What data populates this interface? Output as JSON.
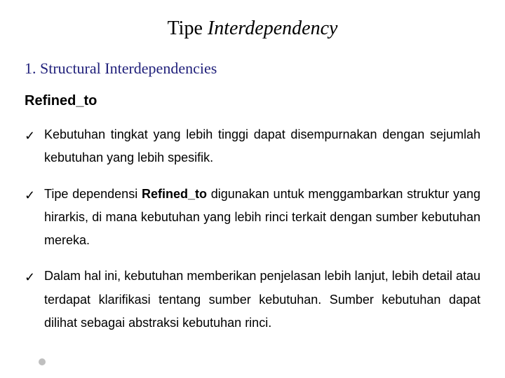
{
  "title": {
    "plain": "Tipe ",
    "italic": "Interdependency",
    "fontsize": 28,
    "color": "#000000"
  },
  "section": {
    "number": "1.",
    "label": "Structural Interdependencies",
    "fontsize": 22,
    "color": "#1f1f7a"
  },
  "subheading": {
    "text": "Refined_to",
    "fontsize": 20
  },
  "checkmark": "✓",
  "body_fontsize": 18,
  "line_height": 1.85,
  "bullets": [
    {
      "pre": "Kebutuhan tingkat yang lebih tinggi dapat disempurnakan dengan sejumlah kebutuhan yang lebih spesifik.",
      "bold": "",
      "post": ""
    },
    {
      "pre": "Tipe dependensi ",
      "bold": "Refined_to",
      "post": " digunakan untuk menggambarkan struktur yang hirarkis, di mana kebutuhan yang lebih rinci terkait dengan sumber kebutuhan mereka."
    },
    {
      "pre": "Dalam hal ini, kebutuhan memberikan penjelasan lebih lanjut, lebih detail atau terdapat klarifikasi tentang sumber kebutuhan. Sumber kebutuhan dapat dilihat sebagai abstraksi kebutuhan rinci.",
      "bold": "",
      "post": ""
    }
  ],
  "colors": {
    "background": "#ffffff",
    "text": "#000000",
    "heading": "#1f1f7a",
    "dot": "#bfbfbf"
  }
}
